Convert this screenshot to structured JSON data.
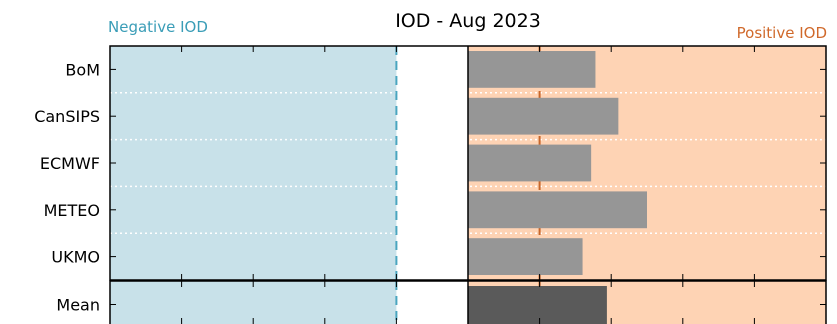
{
  "chart_data": {
    "type": "bar",
    "orientation": "horizontal",
    "title": "IOD - Aug 2023",
    "negative_label": "Negative IOD",
    "positive_label": "Positive IOD",
    "categories": [
      "BoM",
      "CanSIPS",
      "ECMWF",
      "METEO",
      "UKMO"
    ],
    "values": [
      0.89,
      1.05,
      0.86,
      1.25,
      0.8
    ],
    "mean": {
      "label": "Mean",
      "value": 0.97
    },
    "xlim": [
      -2.5,
      2.5
    ],
    "thresholds": [
      -0.5,
      0.5
    ],
    "xticks": [
      -2.5,
      -2.0,
      -1.5,
      -1.0,
      -0.5,
      0.0,
      0.5,
      1.0,
      1.5,
      2.0,
      2.5
    ],
    "grid": "dotted horizontal separators",
    "colors": {
      "negative_region": "#c8e1e9",
      "positive_region": "#fed3b4",
      "bar": "#969696",
      "mean_bar": "#5a5a5a",
      "negative_threshold": "#4aa5bf",
      "positive_threshold": "#c8662a",
      "negative_text": "#3a9db7",
      "positive_text": "#d0692b"
    }
  }
}
